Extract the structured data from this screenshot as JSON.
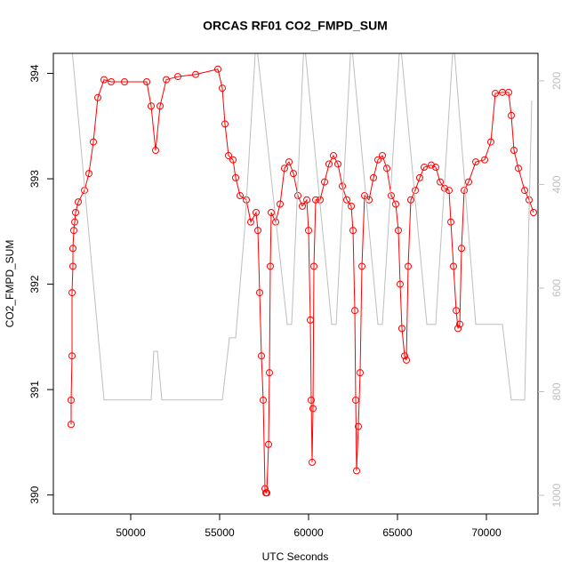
{
  "chart_data": {
    "type": "scatter",
    "title": "ORCAS RF01 CO2_FMPD_SUM",
    "x_label": "UTC Seconds",
    "y_label": "CO2_FMPD_SUM",
    "xlim": [
      45650,
      72900
    ],
    "xticks": [
      50000,
      55000,
      60000,
      65000,
      70000
    ],
    "ylim": [
      389.82,
      394.19
    ],
    "yticks": [
      390,
      391,
      392,
      393,
      394
    ],
    "y2lim": [
      147,
      1036
    ],
    "y2_reversed": true,
    "y2ticks": [
      200,
      400,
      600,
      800,
      1000
    ],
    "series": [
      {
        "type": "scatter",
        "color": "#ff0000",
        "x": [
          46650,
          46650,
          46700,
          46700,
          46750,
          46750,
          46800,
          46850,
          46900,
          47050,
          47400,
          47650,
          47900,
          48150,
          48500,
          48900,
          49650,
          50900,
          51150,
          51400,
          51650,
          52000,
          52650,
          53650,
          54900,
          55150,
          55300,
          55500,
          55750,
          55900,
          56150,
          56500,
          56750,
          57050,
          57150,
          57250,
          57350,
          57450,
          57550,
          57600,
          57650,
          57750,
          57800,
          57850,
          57900,
          58150,
          58400,
          58650,
          58900,
          59150,
          59400,
          59650,
          59900,
          60000,
          60100,
          60150,
          60200,
          60250,
          60300,
          60400,
          60650,
          60900,
          61150,
          61400,
          61650,
          61900,
          62150,
          62400,
          62500,
          62600,
          62650,
          62700,
          62800,
          62900,
          63000,
          63150,
          63400,
          63650,
          63900,
          64150,
          64400,
          64650,
          64900,
          65050,
          65150,
          65250,
          65400,
          65500,
          65600,
          65750,
          66000,
          66250,
          66500,
          66900,
          67150,
          67400,
          67650,
          67900,
          68000,
          68150,
          68300,
          68400,
          68500,
          68600,
          68750,
          69000,
          69400,
          69900,
          70250,
          70500,
          70900,
          71250,
          71400,
          71550,
          71800,
          72150,
          72400,
          72650
        ],
        "values": [
          390.67,
          390.9,
          391.32,
          391.92,
          392.17,
          392.34,
          392.51,
          392.59,
          392.68,
          392.78,
          392.89,
          393.05,
          393.35,
          393.77,
          393.94,
          393.92,
          393.92,
          393.92,
          393.69,
          393.27,
          393.69,
          393.94,
          393.97,
          393.99,
          394.04,
          393.86,
          393.52,
          393.22,
          393.18,
          393.01,
          392.84,
          392.8,
          392.59,
          392.68,
          392.51,
          391.92,
          391.32,
          390.9,
          390.06,
          390.02,
          390.02,
          390.48,
          391.16,
          392.17,
          392.68,
          392.59,
          392.76,
          393.1,
          393.16,
          393.05,
          392.84,
          392.74,
          392.8,
          392.51,
          391.66,
          390.9,
          390.31,
          390.82,
          392.17,
          392.8,
          392.8,
          392.97,
          393.14,
          393.22,
          393.14,
          392.93,
          392.8,
          392.74,
          392.51,
          391.75,
          390.9,
          390.23,
          390.65,
          391.16,
          392.17,
          392.84,
          392.8,
          393.01,
          393.18,
          393.22,
          393.1,
          392.84,
          392.76,
          392.51,
          392.0,
          391.58,
          391.32,
          391.28,
          392.17,
          392.8,
          392.89,
          393.01,
          393.11,
          393.13,
          393.11,
          392.97,
          392.91,
          392.89,
          392.59,
          392.17,
          391.75,
          391.58,
          391.62,
          392.34,
          392.89,
          392.97,
          393.16,
          393.18,
          393.35,
          393.81,
          393.82,
          393.82,
          393.6,
          393.27,
          393.1,
          392.89,
          392.8,
          392.68
        ]
      },
      {
        "type": "line",
        "color": "#bebebe",
        "axis": "y2",
        "x": [
          46650,
          48500,
          51150,
          51300,
          51500,
          51750,
          55150,
          55550,
          55900,
          56400,
          57050,
          58800,
          59050,
          59750,
          61300,
          61550,
          62400,
          63900,
          64150,
          65150,
          66650,
          67150,
          68150,
          69400,
          69900,
          70900,
          71400,
          72150,
          72550
        ],
        "values": [
          120,
          816,
          816,
          722,
          722,
          816,
          816,
          696,
          696,
          490,
          120,
          670,
          670,
          120,
          670,
          670,
          120,
          670,
          670,
          120,
          670,
          670,
          120,
          670,
          670,
          670,
          816,
          816,
          238
        ]
      }
    ]
  }
}
